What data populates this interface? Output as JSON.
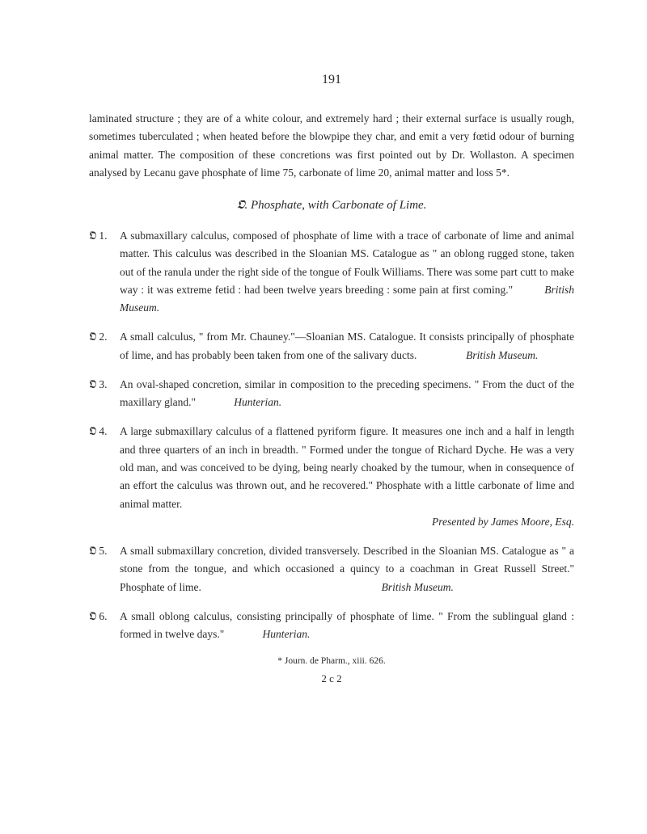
{
  "page_number": "191",
  "intro": "laminated structure ; they are of a white colour, and extremely hard ; their external surface is usually rough, sometimes tuberculated ; when heated before the blowpipe they char, and emit a very fœtid odour of burning animal matter. The composition of these concretions was first pointed out by Dr. Wollaston. A specimen analysed by Lecanu gave phosphate of lime 75, carbonate of lime 20, animal matter and loss 5*.",
  "section_prefix": "𝕺.",
  "section_title": "Phosphate, with Carbonate of Lime.",
  "entries": [
    {
      "label": "𝕺 1.",
      "body": "A submaxillary calculus, composed of phosphate of lime with a trace of carbonate of lime and animal matter. This calculus was described in the Sloanian MS. Catalogue as \" an oblong rugged stone, taken out of the ranula under the right side of the tongue of Foulk Williams. There was some part cutt to make way : it was extreme fetid : had been twelve years breeding : some pain at first coming.\"",
      "attribution": "British Museum."
    },
    {
      "label": "𝕺 2.",
      "body": "A small calculus, \" from Mr. Chauney.\"—Sloanian MS. Catalogue. It consists principally of phosphate of lime, and has probably been taken from one of the salivary ducts.",
      "attribution": "British Museum."
    },
    {
      "label": "𝕺 3.",
      "body": "An oval-shaped concretion, similar in composition to the preceding specimens. \" From the duct of the maxillary gland.\"",
      "attribution": "Hunterian."
    },
    {
      "label": "𝕺 4.",
      "body": "A large submaxillary calculus of a flattened pyriform figure. It measures one inch and a half in length and three quarters of an inch in breadth. \" Formed under the tongue of Richard Dyche. He was a very old man, and was conceived to be dying, being nearly choaked by the tumour, when in consequence of an effort the calculus was thrown out, and he recovered.\" Phosphate with a little carbonate of lime and animal matter.",
      "attribution_line": "Presented by James Moore, Esq."
    },
    {
      "label": "𝕺 5.",
      "body": "A small submaxillary concretion, divided transversely. Described in the Sloanian MS. Catalogue as \" a stone from the tongue, and which occasioned a quincy to a coachman in Great Russell Street.\" Phosphate of lime.",
      "attribution": "British Museum."
    },
    {
      "label": "𝕺 6.",
      "body": "A small oblong calculus, consisting principally of phosphate of lime. \" From the sublingual gland : formed in twelve days.\"",
      "attribution": "Hunterian."
    }
  ],
  "footnote": "* Journ. de Pharm., xiii. 626.",
  "signature": "2 c 2"
}
